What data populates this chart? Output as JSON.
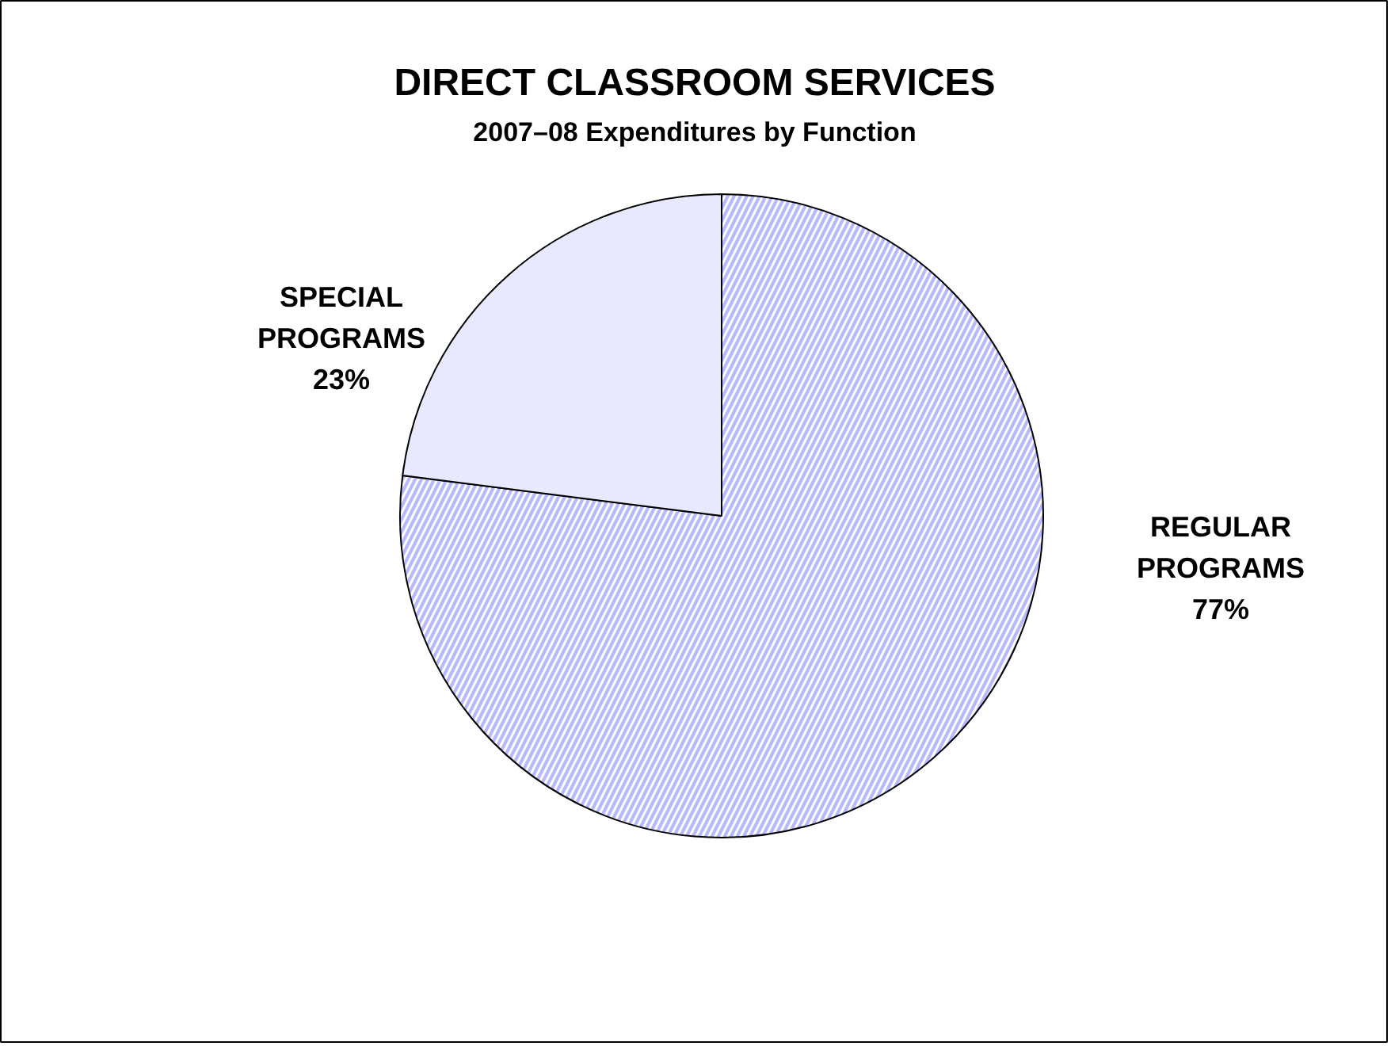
{
  "chart_data": {
    "type": "pie",
    "title": "DIRECT CLASSROOM SERVICES",
    "subtitle": "2007–08 Expenditures by Function",
    "categories": [
      "REGULAR PROGRAMS",
      "SPECIAL PROGRAMS"
    ],
    "values": [
      77,
      23
    ],
    "value_labels": [
      "77%",
      "23%"
    ],
    "colors": [
      "#b8b8ff",
      "#e8e8ff"
    ]
  }
}
